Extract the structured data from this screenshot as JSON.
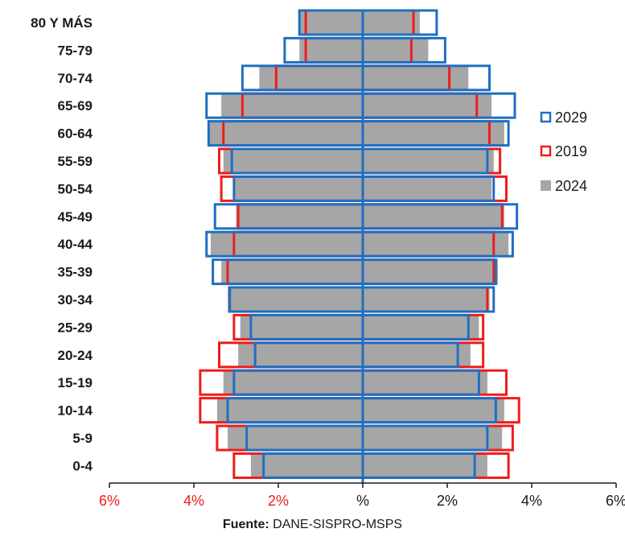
{
  "chart_data": {
    "type": "bar",
    "subtype": "population-pyramid",
    "categories": [
      "80 Y MÁS",
      "75-79",
      "70-74",
      "65-69",
      "60-64",
      "55-59",
      "50-54",
      "45-49",
      "40-44",
      "35-39",
      "30-34",
      "25-29",
      "20-24",
      "15-19",
      "10-14",
      "5-9",
      "0-4"
    ],
    "series": [
      {
        "name": "2029",
        "style": "outline",
        "color": "#1f6fc1",
        "left": [
          1.5,
          1.85,
          2.85,
          3.7,
          3.65,
          3.1,
          3.05,
          3.5,
          3.7,
          3.55,
          3.15,
          2.65,
          2.55,
          3.05,
          3.2,
          2.75,
          2.35
        ],
        "right": [
          1.75,
          1.95,
          3.0,
          3.6,
          3.45,
          2.95,
          3.1,
          3.65,
          3.55,
          3.15,
          3.1,
          2.5,
          2.25,
          2.75,
          3.15,
          2.95,
          2.65
        ]
      },
      {
        "name": "2019",
        "style": "outline",
        "color": "#ee1c1c",
        "left": [
          1.35,
          1.35,
          2.05,
          2.85,
          3.3,
          3.4,
          3.35,
          2.95,
          3.05,
          3.2,
          3.15,
          3.05,
          3.4,
          3.85,
          3.85,
          3.45,
          3.05
        ],
        "right": [
          1.2,
          1.15,
          2.05,
          2.7,
          3.0,
          3.25,
          3.4,
          3.3,
          3.1,
          3.1,
          2.95,
          2.85,
          2.85,
          3.4,
          3.7,
          3.55,
          3.45
        ]
      },
      {
        "name": "2024",
        "style": "filled",
        "color": "#a6a6a6",
        "left": [
          1.5,
          1.5,
          2.45,
          3.35,
          3.65,
          3.3,
          3.05,
          3.0,
          3.6,
          3.35,
          3.2,
          2.9,
          2.95,
          3.3,
          3.45,
          3.2,
          2.65
        ],
        "right": [
          1.35,
          1.55,
          2.5,
          3.05,
          3.35,
          3.1,
          3.05,
          3.35,
          3.45,
          3.2,
          3.0,
          2.75,
          2.55,
          2.95,
          3.35,
          3.3,
          2.95
        ]
      }
    ],
    "xlim": [
      -6,
      6
    ],
    "xticks": [
      {
        "value": -6,
        "label": "6%"
      },
      {
        "value": -4,
        "label": "4%"
      },
      {
        "value": -2,
        "label": "2%"
      },
      {
        "value": 0,
        "label": "%"
      },
      {
        "value": 2,
        "label": "2%"
      },
      {
        "value": 4,
        "label": "4%"
      },
      {
        "value": 6,
        "label": "6%"
      }
    ],
    "left_tick_color": "#ee1c1c",
    "right_tick_color": "#1a1a1a",
    "center_line_color": "#1f6fc1",
    "legend_position": "right",
    "legend": [
      {
        "label": "2029",
        "style": "outline",
        "color": "#1f6fc1"
      },
      {
        "label": "2019",
        "style": "outline",
        "color": "#ee1c1c"
      },
      {
        "label": "2024",
        "style": "filled",
        "color": "#a6a6a6"
      }
    ],
    "grid": false
  },
  "source": {
    "prefix": "Fuente:",
    "text": " DANE-SISPRO-MSPS"
  }
}
